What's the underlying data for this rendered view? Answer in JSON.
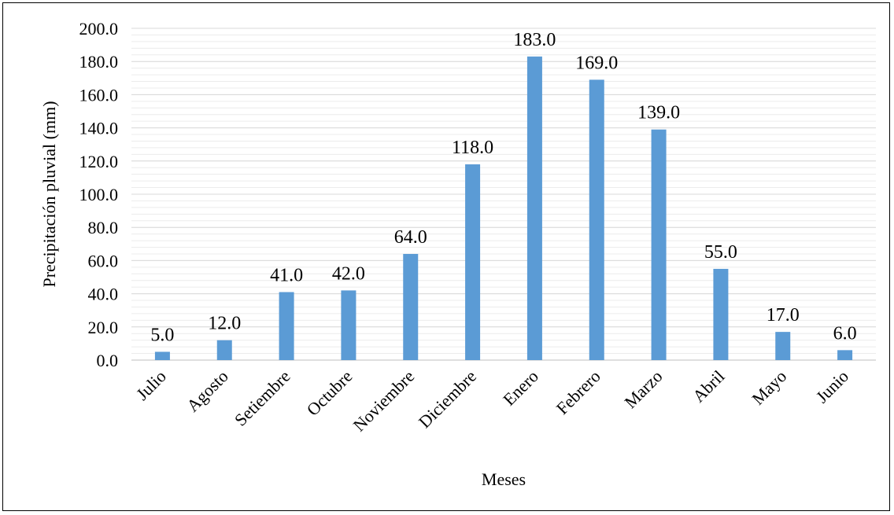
{
  "chart_data": {
    "type": "bar",
    "categories": [
      "Julio",
      "Agosto",
      "Setiembre",
      "Octubre",
      "Noviembre",
      "Diciembre",
      "Enero",
      "Febrero",
      "Marzo",
      "Abril",
      "Mayo",
      "Junio"
    ],
    "values": [
      5.0,
      12.0,
      41.0,
      42.0,
      64.0,
      118.0,
      183.0,
      169.0,
      139.0,
      55.0,
      17.0,
      6.0
    ],
    "value_labels": [
      "5.0",
      "12.0",
      "41.0",
      "42.0",
      "64.0",
      "118.0",
      "183.0",
      "169.0",
      "139.0",
      "55.0",
      "17.0",
      "6.0"
    ],
    "yticks": [
      "0.0",
      "20.0",
      "40.0",
      "60.0",
      "80.0",
      "100.0",
      "120.0",
      "140.0",
      "160.0",
      "180.0",
      "200.0"
    ],
    "ylim": [
      0,
      200
    ],
    "xlabel": "Meses",
    "ylabel": "Precipitación pluvial (mm)",
    "grid": true,
    "bar_color": "#5b9bd5",
    "grid_color": "#d9d9d9"
  }
}
